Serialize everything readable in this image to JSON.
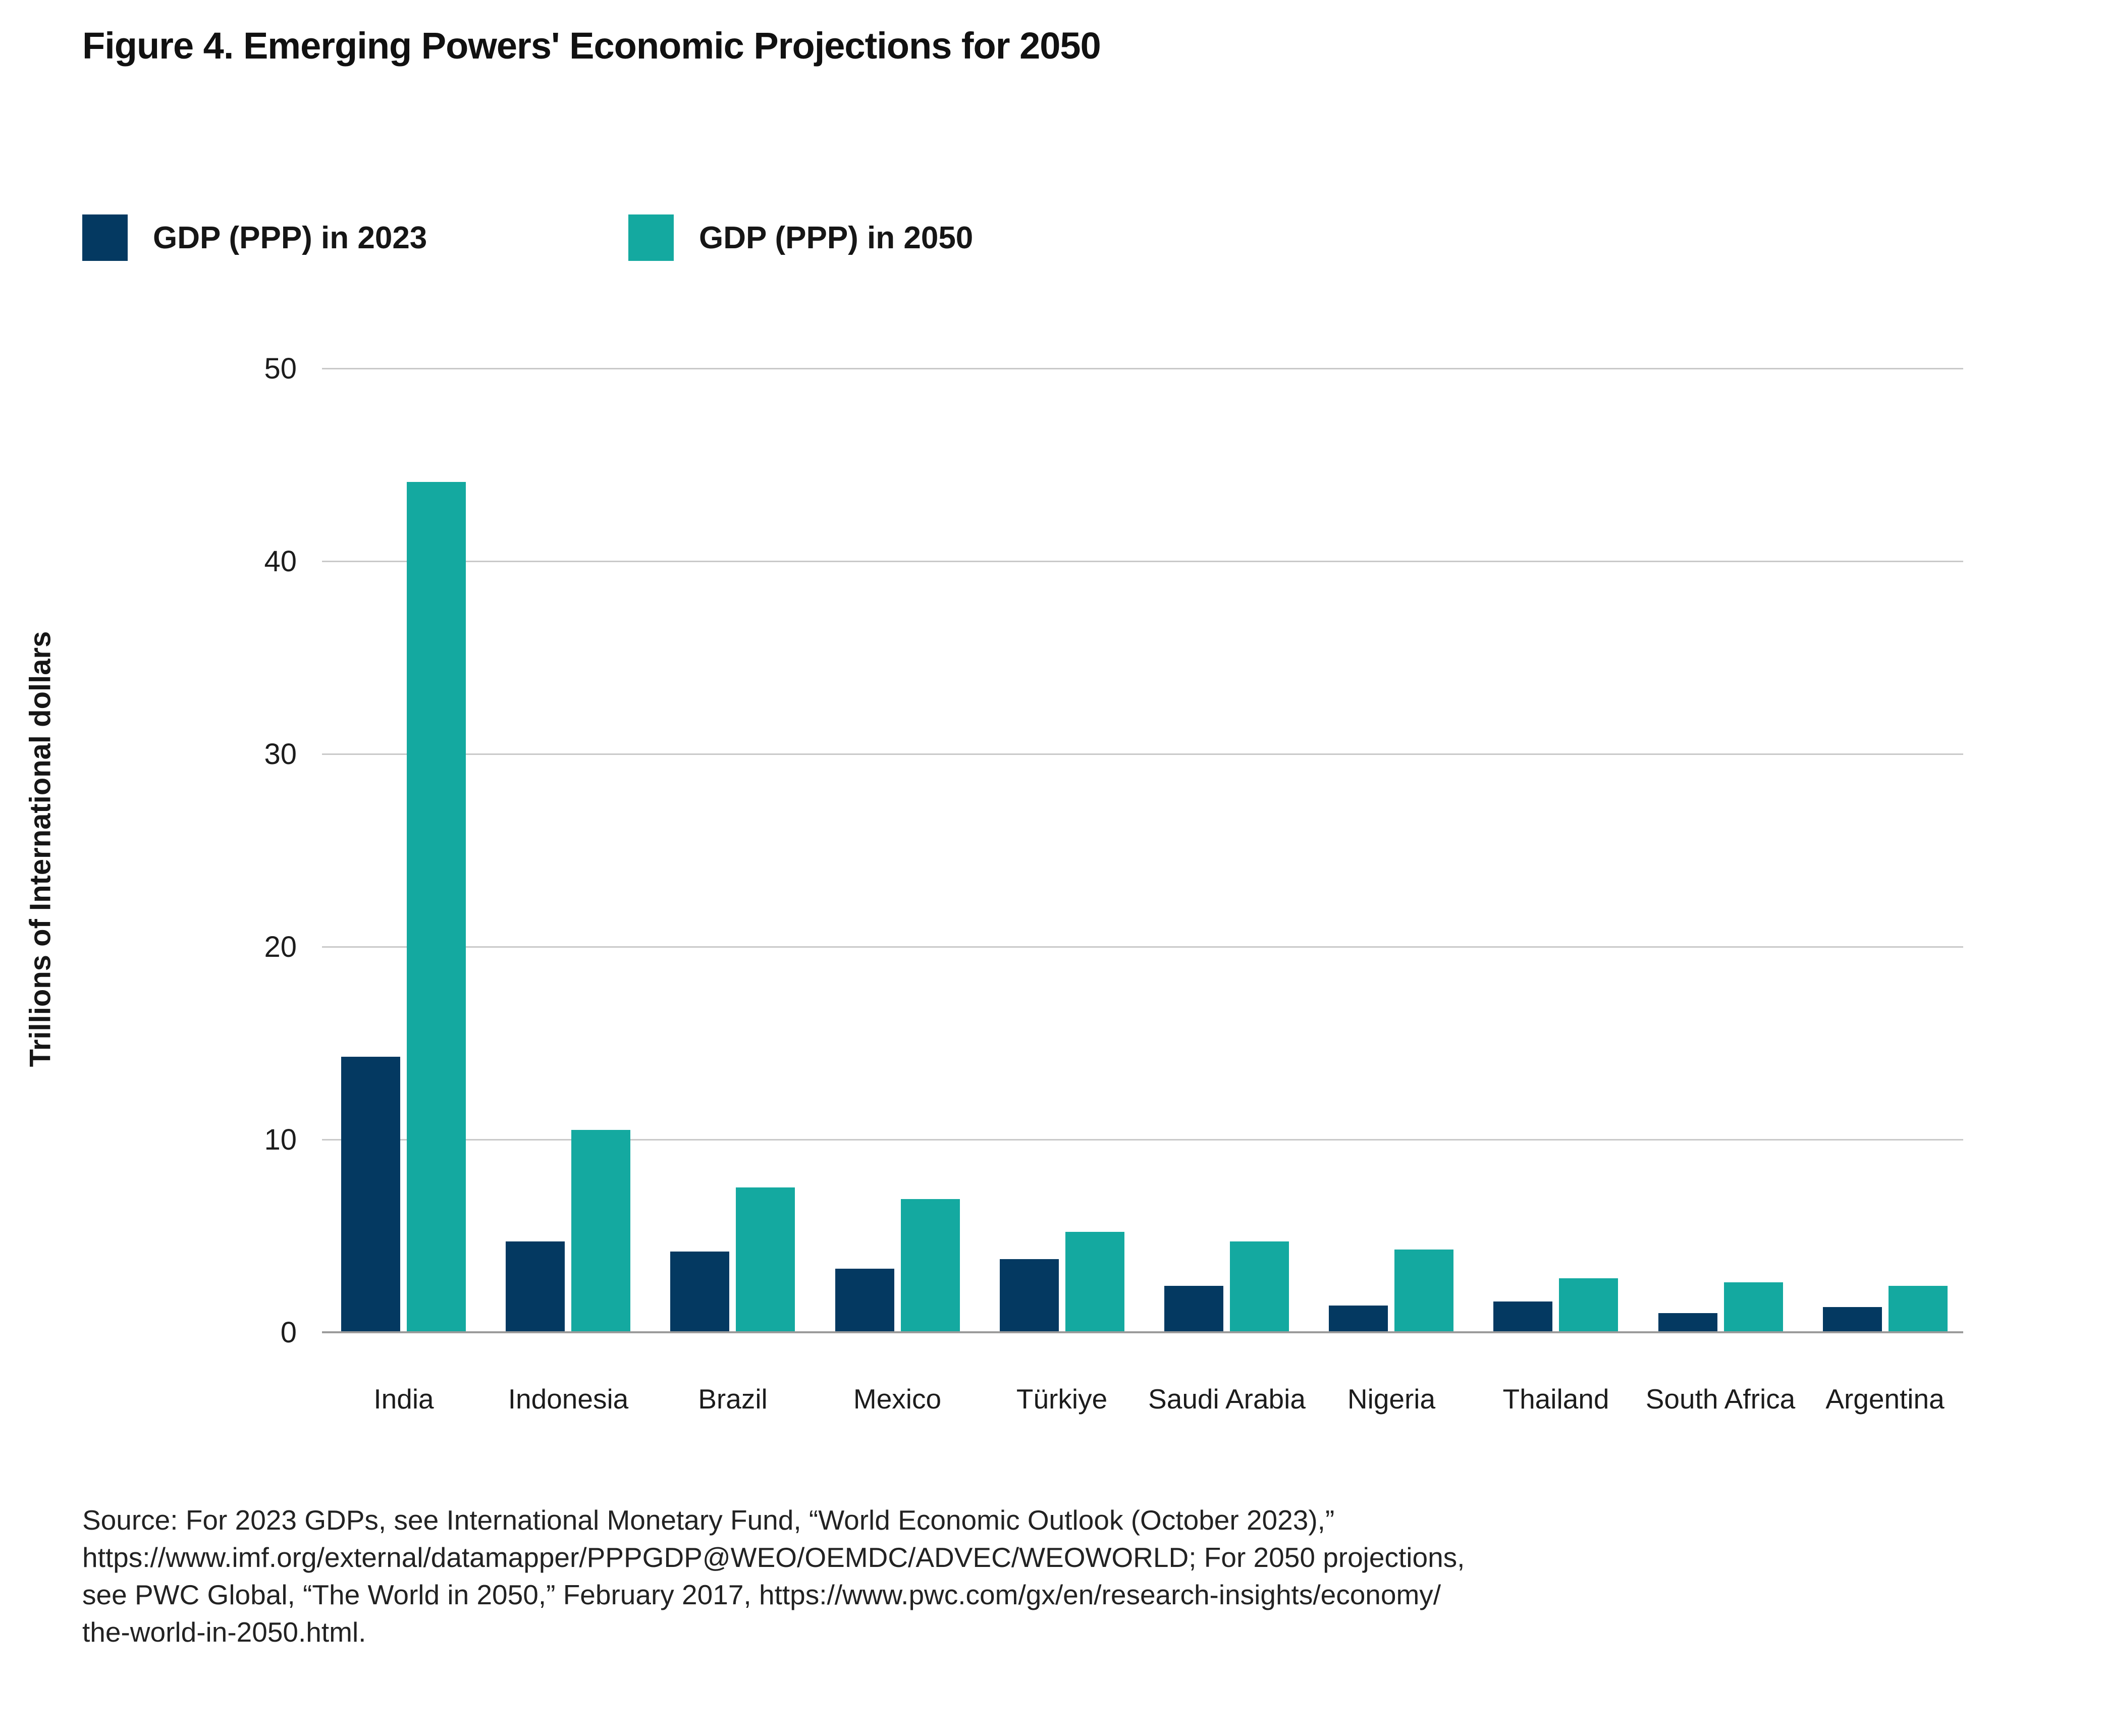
{
  "title": "Figure 4. Emerging Powers' Economic Projections for 2050",
  "colors": {
    "navy": "#043961",
    "teal": "#14A9A0",
    "gridline": "#c9c9c9",
    "axis_line": "#9b9b9b"
  },
  "legend": {
    "items": [
      {
        "label": "GDP (PPP) in 2023",
        "color": "#043961"
      },
      {
        "label": "GDP (PPP) in 2050",
        "color": "#14A9A0"
      }
    ]
  },
  "chart_data": {
    "type": "bar",
    "title": "Figure 4. Emerging Powers' Economic Projections for 2050",
    "categories": [
      "India",
      "Indonesia",
      "Brazil",
      "Mexico",
      "Türkiye",
      "Saudi Arabia",
      "Nigeria",
      "Thailand",
      "South Africa",
      "Argentina"
    ],
    "series": [
      {
        "name": "GDP (PPP) in 2023",
        "color": "#043961",
        "values": [
          14.3,
          4.7,
          4.2,
          3.3,
          3.8,
          2.4,
          1.4,
          1.6,
          1.0,
          1.3
        ]
      },
      {
        "name": "GDP (PPP) in 2050",
        "color": "#14A9A0",
        "values": [
          44.1,
          10.5,
          7.5,
          6.9,
          5.2,
          4.7,
          4.3,
          2.8,
          2.6,
          2.4
        ]
      }
    ],
    "xlabel": "",
    "ylabel": "Trillions of International dollars",
    "ylim": [
      0,
      50
    ],
    "yticks": [
      0,
      10,
      20,
      30,
      40,
      50
    ],
    "grid": true,
    "legend_position": "top-left"
  },
  "source": {
    "lines": [
      "Source: For 2023 GDPs, see International Monetary Fund, “World Economic Outlook (October 2023),”",
      "https://www.imf.org/external/datamapper/PPPGDP@WEO/OEMDC/ADVEC/WEOWORLD; For 2050 projections,",
      "see PWC Global, “The World in 2050,” February 2017, https://www.pwc.com/gx/en/research-insights/economy/",
      "the-world-in-2050.html."
    ]
  }
}
